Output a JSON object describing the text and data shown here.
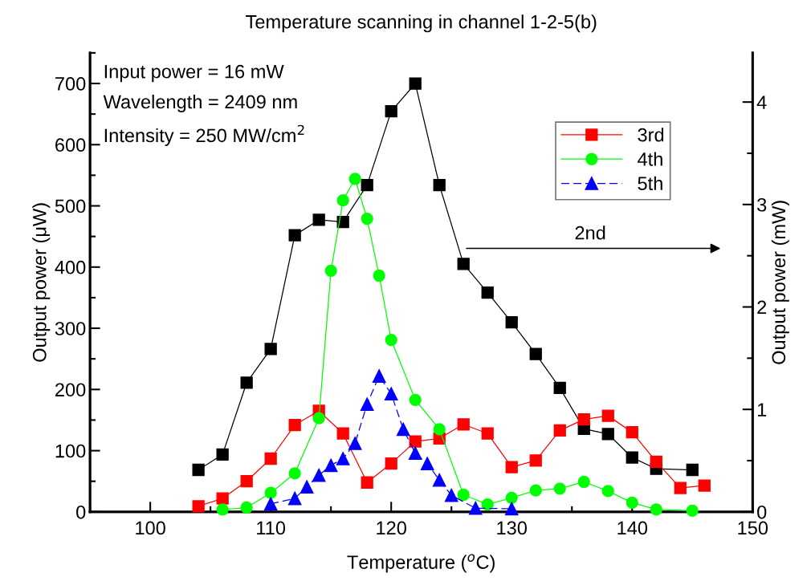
{
  "chart_data": {
    "type": "line",
    "title": "Temperature scanning in channel 1-2-5(b)",
    "xlabel": "Temperature ($^{o}$C)",
    "ylabel": "Output power (μW)",
    "y2label": "Output power (mW)",
    "xlim": [
      95,
      150
    ],
    "xticks": [
      100,
      110,
      120,
      130,
      140,
      150
    ],
    "ylim": [
      0,
      750
    ],
    "yticks": [
      0,
      100,
      200,
      300,
      400,
      500,
      600,
      700
    ],
    "y2lim": [
      0,
      4.48
    ],
    "y2ticks": [
      0,
      1,
      2,
      3,
      4
    ],
    "legend": "upper right",
    "grid": false,
    "annotations": [
      "Input power = 16 mW",
      "Wavelength = 2409 nm",
      "Intensity = 250 MW/cm$^{2}$",
      "2nd"
    ],
    "series": [
      {
        "color": "#000000",
        "axis": "y2",
        "marker": "square",
        "line_style": "solid",
        "x": [
          104,
          106,
          108,
          110,
          112,
          114,
          116,
          118,
          120,
          122,
          124,
          126,
          128,
          130,
          132,
          134,
          136,
          138,
          140,
          142,
          145
        ],
        "values": [
          0.41,
          0.56,
          1.26,
          1.59,
          2.7,
          2.85,
          2.83,
          3.19,
          3.91,
          4.18,
          3.19,
          2.42,
          2.14,
          1.85,
          1.54,
          1.21,
          0.81,
          0.76,
          0.53,
          0.42,
          0.41
        ]
      },
      {
        "name": "3rd",
        "color": "#ff0000",
        "marker": "square",
        "line_style": "solid",
        "x": [
          104,
          106,
          108,
          110,
          112,
          114,
          116,
          118,
          120,
          122,
          124,
          126,
          128,
          130,
          132,
          134,
          136,
          138,
          140,
          142,
          144,
          146
        ],
        "values": [
          9,
          22,
          50,
          87,
          142,
          165,
          128,
          48,
          79,
          115,
          120,
          143,
          128,
          73,
          84,
          133,
          151,
          157,
          130,
          82,
          39,
          43
        ]
      },
      {
        "name": "4th",
        "color": "#00ff00",
        "marker": "circle",
        "line_style": "solid",
        "x": [
          106,
          108,
          110,
          112,
          114,
          115,
          116,
          117,
          118,
          119,
          120,
          122,
          124,
          126,
          128,
          130,
          132,
          134,
          136,
          138,
          140,
          142,
          145
        ],
        "values": [
          4,
          7,
          31,
          63,
          153,
          394,
          509,
          544,
          479,
          386,
          281,
          183,
          135,
          28,
          12,
          23,
          35,
          38,
          49,
          34,
          15,
          4,
          2
        ]
      },
      {
        "name": "5th",
        "color": "#0000ff",
        "marker": "triangle",
        "line_style": "dashed",
        "x": [
          110,
          112,
          113,
          114,
          115,
          116,
          117,
          118,
          119,
          120,
          121,
          122,
          123,
          124,
          125,
          127,
          130
        ],
        "values": [
          13,
          22,
          41,
          60,
          76,
          87,
          112,
          176,
          222,
          193,
          135,
          96,
          79,
          52,
          27,
          6,
          5
        ]
      }
    ]
  }
}
